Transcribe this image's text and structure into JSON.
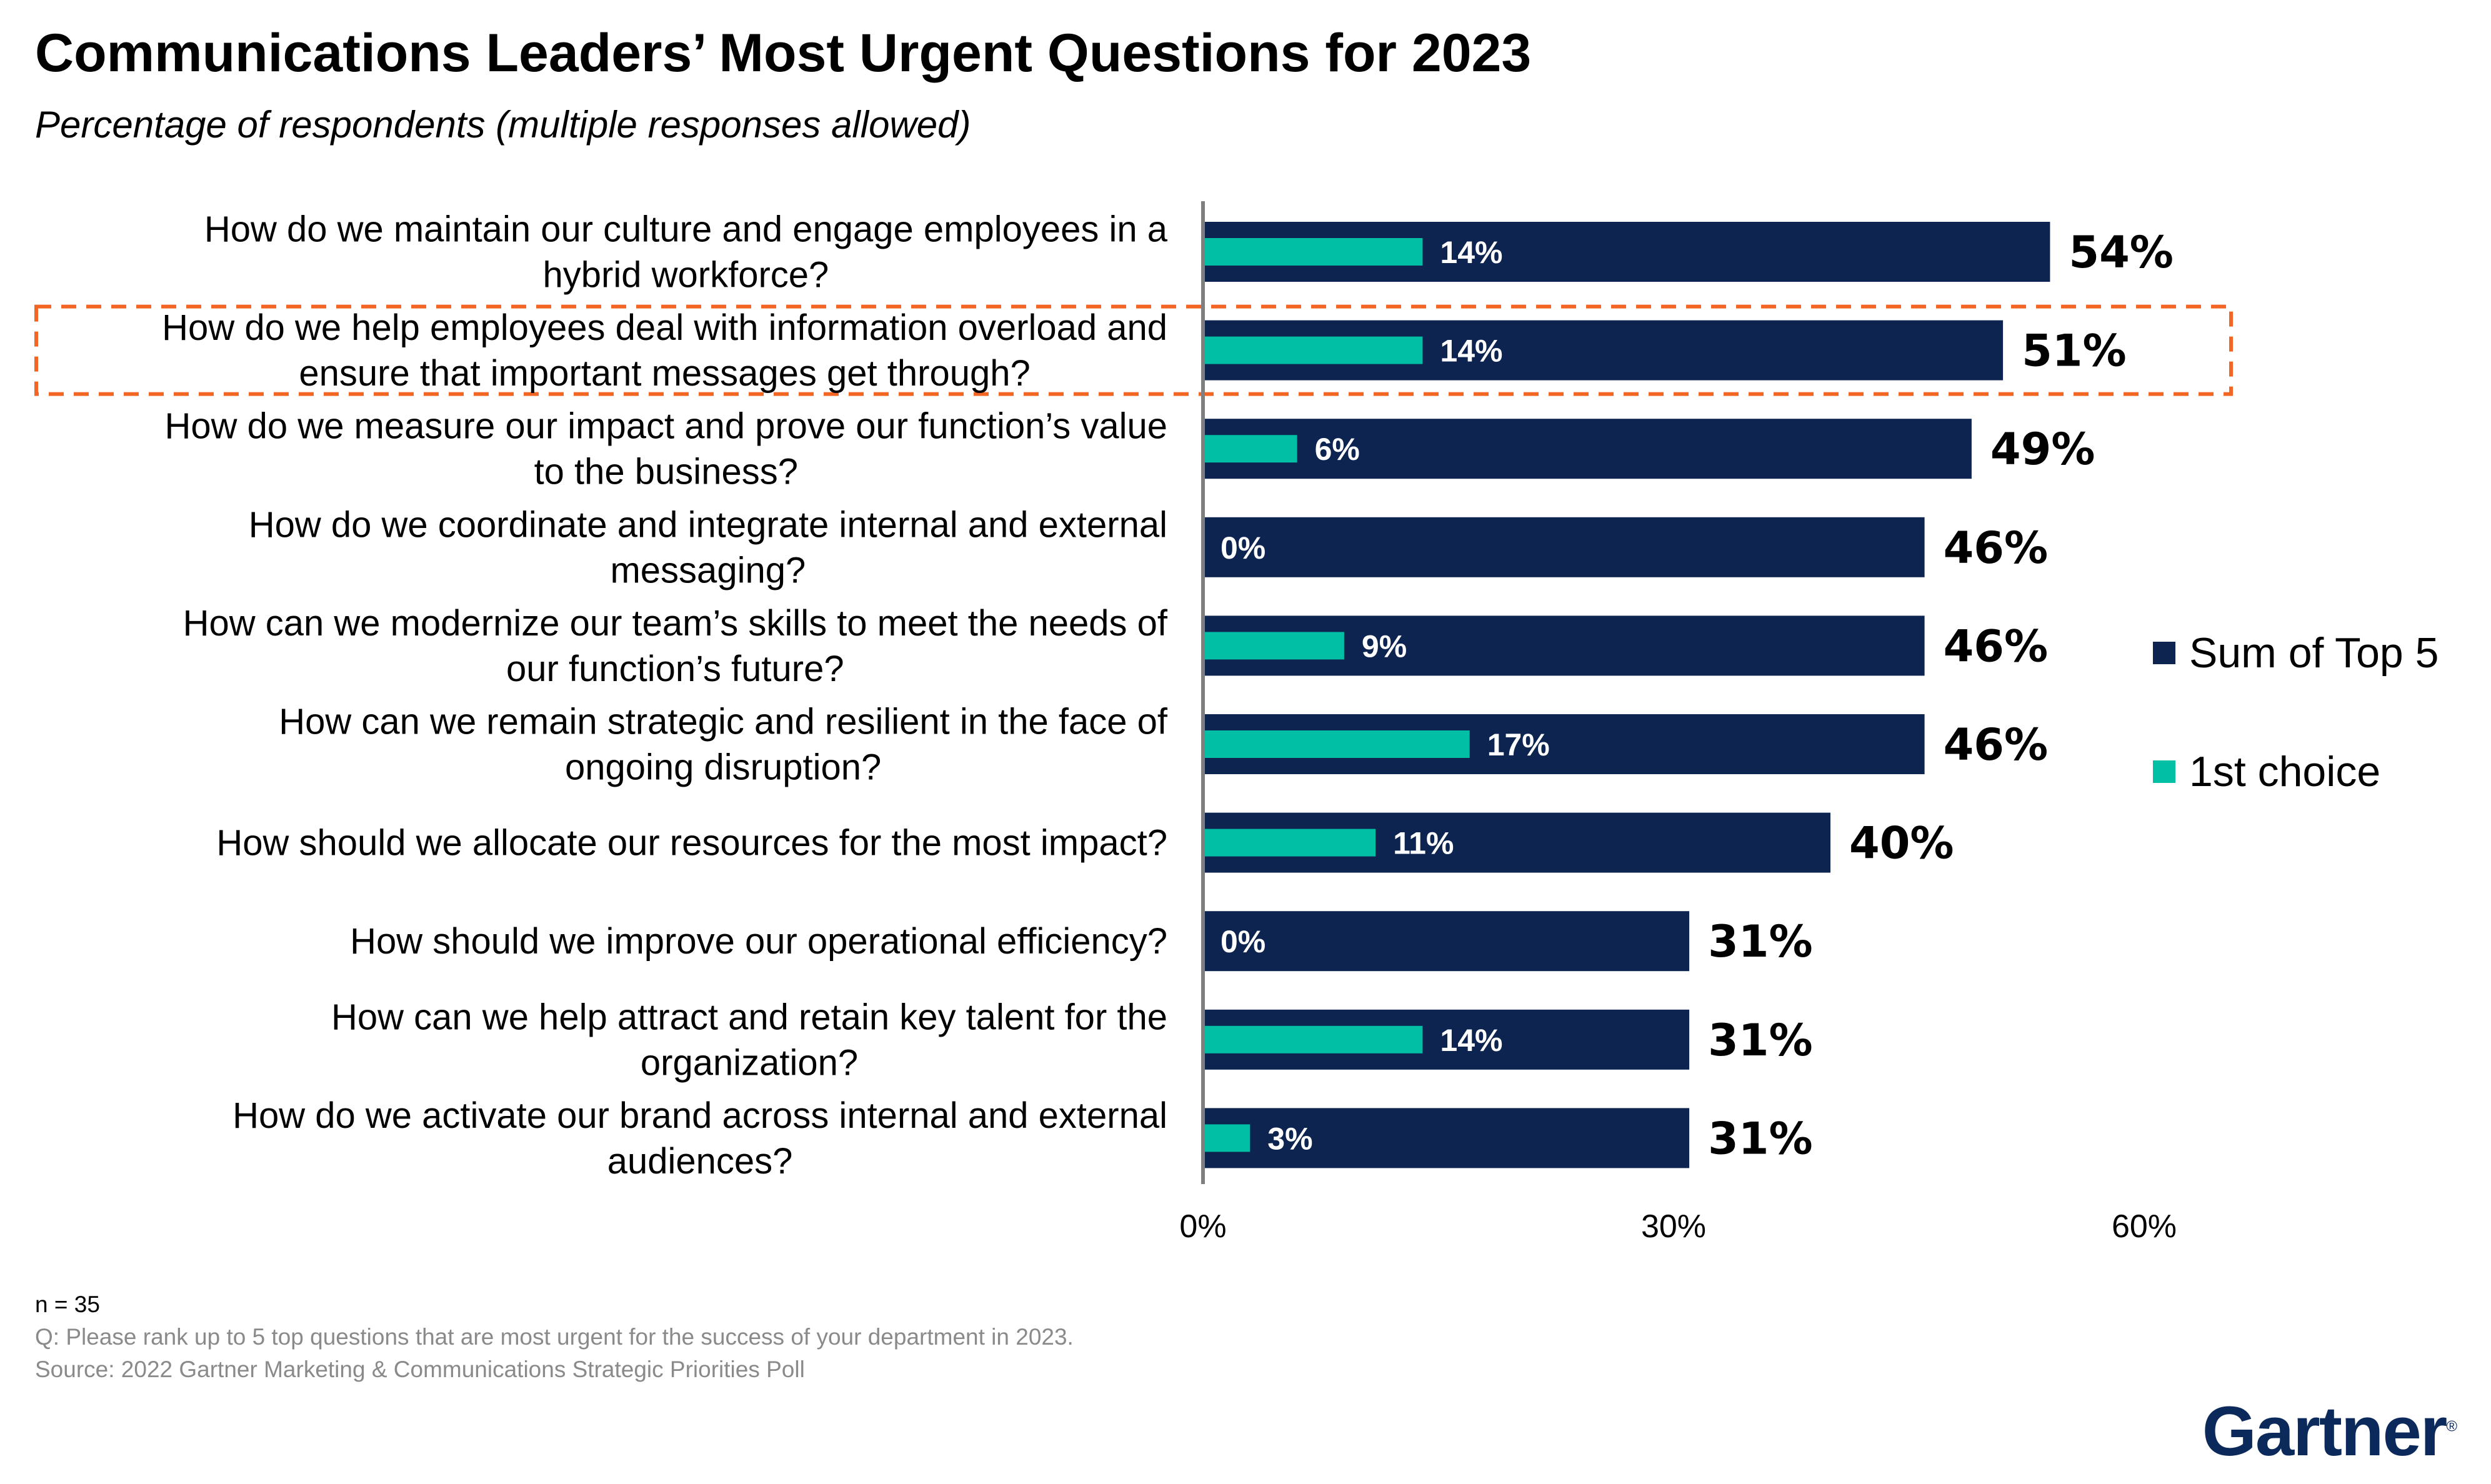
{
  "title": "Communications Leaders’ Most Urgent Questions for 2023",
  "subtitle": "Percentage of respondents (multiple responses allowed)",
  "colors": {
    "sum": "#0d2451",
    "first": "#00bfa5",
    "highlight": "#f26522",
    "axis": "#7f7f7f"
  },
  "chart_data": {
    "type": "bar",
    "orientation": "horizontal",
    "categories": [
      [
        "How do we maintain our culture and engage employees in a",
        "hybrid workforce?"
      ],
      [
        "How do we help employees deal with information overload and",
        "ensure that important messages get through?"
      ],
      [
        "How do we measure our impact and prove our function’s value",
        "to the business?"
      ],
      [
        "How do we coordinate and integrate internal and external",
        "messaging?"
      ],
      [
        "How can we modernize our team’s skills to meet the needs of",
        "our function’s future?"
      ],
      [
        "How can we remain strategic and resilient in the face of",
        "ongoing disruption?"
      ],
      [
        "How should we allocate our resources for the most impact?"
      ],
      [
        "How should we improve our operational efficiency?"
      ],
      [
        "How can we help attract and retain key talent for the",
        "organization?"
      ],
      [
        "How do we activate our brand across internal and external",
        "audiences?"
      ]
    ],
    "series": [
      {
        "name": "Sum of Top 5",
        "values": [
          54,
          51,
          49,
          46,
          46,
          46,
          40,
          31,
          31,
          31
        ],
        "labels": [
          "54%",
          "51%",
          "49%",
          "46%",
          "46%",
          "46%",
          "40%",
          "31%",
          "31%",
          "31%"
        ]
      },
      {
        "name": "1st choice",
        "values": [
          14,
          14,
          6,
          0,
          9,
          17,
          11,
          0,
          14,
          3
        ],
        "labels": [
          "14%",
          "14%",
          "6%",
          "0%",
          "9%",
          "17%",
          "11%",
          "0%",
          "14%",
          "3%"
        ]
      }
    ],
    "xlim": [
      0,
      60
    ],
    "ticks": [
      0,
      30,
      60
    ],
    "tick_labels": [
      "0%",
      "30%",
      "60%"
    ],
    "highlighted_index": 1,
    "legend_position": "right",
    "grid": false
  },
  "legend": {
    "sum_label": "Sum of Top 5",
    "first_label": "1st choice"
  },
  "footer": {
    "n": "n = 35",
    "question": "Q: Please rank up to 5 top questions that are most urgent for the success of your department in 2023.",
    "source": "Source: 2022 Gartner Marketing & Communications Strategic Priorities Poll"
  },
  "logo": {
    "text": "Gartner",
    "mark": "®"
  }
}
